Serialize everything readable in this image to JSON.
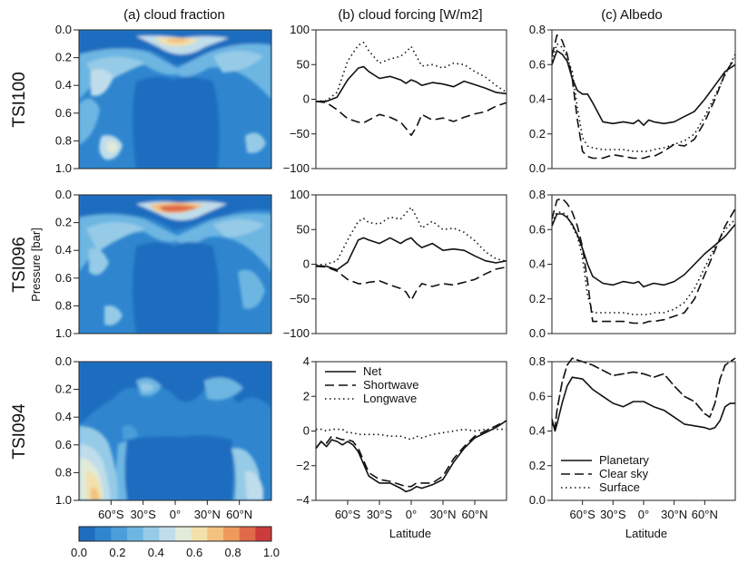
{
  "chart_data": {
    "type": "multi-panel",
    "column_titles": [
      "(a) cloud fraction",
      "(b) cloud forcing [W/m2]",
      "(c) Albedo"
    ],
    "row_labels": [
      "TSI100",
      "TSI096",
      "TSI094"
    ],
    "latitude_ticks": [
      "60°S",
      "30°S",
      "0°",
      "30°N",
      "60°N"
    ],
    "latitude_tick_values": [
      -60,
      -30,
      0,
      30,
      60
    ],
    "x_range": [
      -90,
      90
    ],
    "xlabel": "Latitude",
    "cloud_fraction": {
      "ylabel": "Pressure [bar]",
      "y_range": [
        0.0,
        1.0
      ],
      "y_ticks": [
        "0.0",
        "0.2",
        "0.4",
        "0.6",
        "0.8",
        "1.0"
      ],
      "colorbar_ticks": [
        "0.0",
        "0.2",
        "0.4",
        "0.6",
        "0.8",
        "1.0"
      ],
      "colorbar_colors": [
        "#1f6dbf",
        "#2f86cf",
        "#4a9ed9",
        "#6db6e2",
        "#96cbe7",
        "#bfddeb",
        "#e2ead8",
        "#f2e1ac",
        "#f4c27f",
        "#ee9a5d",
        "#e06a49",
        "#cc3b3b"
      ]
    },
    "cloud_forcing": {
      "rows": [
        {
          "y_range": [
            -100,
            100
          ],
          "y_ticks": [
            "100",
            "50",
            "0",
            "−50",
            "−100"
          ],
          "lat": [
            -90,
            -80,
            -70,
            -60,
            -50,
            -45,
            -40,
            -30,
            -20,
            -10,
            -5,
            0,
            5,
            10,
            20,
            30,
            40,
            50,
            60,
            70,
            80,
            90
          ],
          "series": [
            {
              "name": "Net",
              "values": [
                -3,
                -3,
                3,
                28,
                45,
                47,
                40,
                30,
                33,
                28,
                23,
                28,
                25,
                20,
                24,
                22,
                18,
                26,
                21,
                16,
                10,
                8
              ]
            },
            {
              "name": "Shortwave",
              "values": [
                -3,
                -5,
                -15,
                -28,
                -33,
                -34,
                -30,
                -22,
                -26,
                -33,
                -42,
                -52,
                -40,
                -22,
                -30,
                -27,
                -32,
                -26,
                -21,
                -18,
                -10,
                -5
              ]
            },
            {
              "name": "Longwave",
              "values": [
                -3,
                -2,
                10,
                55,
                78,
                82,
                70,
                52,
                58,
                62,
                68,
                76,
                62,
                48,
                50,
                45,
                52,
                50,
                40,
                32,
                20,
                10
              ]
            }
          ]
        },
        {
          "y_range": [
            -100,
            100
          ],
          "y_ticks": [
            "100",
            "50",
            "0",
            "−50",
            "−100"
          ],
          "lat": [
            -90,
            -80,
            -70,
            -60,
            -50,
            -45,
            -40,
            -30,
            -20,
            -10,
            -5,
            0,
            5,
            10,
            20,
            30,
            40,
            50,
            60,
            70,
            80,
            90
          ],
          "series": [
            {
              "name": "Net",
              "values": [
                -2,
                -3,
                -8,
                3,
                35,
                38,
                35,
                30,
                38,
                30,
                35,
                38,
                30,
                24,
                30,
                20,
                22,
                20,
                12,
                5,
                2,
                5
              ]
            },
            {
              "name": "Shortwave",
              "values": [
                -3,
                -4,
                -10,
                -22,
                -28,
                -28,
                -26,
                -24,
                -30,
                -35,
                -40,
                -52,
                -38,
                -28,
                -32,
                -28,
                -30,
                -26,
                -22,
                -14,
                -7,
                -4
              ]
            },
            {
              "name": "Longwave",
              "values": [
                -1,
                0,
                5,
                35,
                62,
                66,
                60,
                58,
                68,
                65,
                74,
                82,
                68,
                52,
                62,
                50,
                52,
                46,
                34,
                18,
                8,
                4
              ]
            }
          ]
        },
        {
          "y_range": [
            -4,
            4
          ],
          "y_ticks": [
            "4",
            "2",
            "0",
            "−2",
            "−4"
          ],
          "lat": [
            -90,
            -85,
            -80,
            -75,
            -70,
            -65,
            -60,
            -55,
            -50,
            -40,
            -30,
            -20,
            -10,
            -5,
            0,
            5,
            10,
            20,
            30,
            40,
            50,
            60,
            70,
            80,
            90
          ],
          "series": [
            {
              "name": "Net",
              "values": [
                -1.0,
                -0.6,
                -0.9,
                -0.5,
                -0.6,
                -0.8,
                -0.6,
                -0.8,
                -1.2,
                -2.6,
                -3.0,
                -3.0,
                -3.3,
                -3.5,
                -3.4,
                -3.2,
                -3.3,
                -3.1,
                -2.8,
                -1.8,
                -1.0,
                -0.4,
                -0.1,
                0.2,
                0.6
              ]
            },
            {
              "name": "Shortwave",
              "values": [
                -1.0,
                -0.6,
                -0.7,
                -0.3,
                -0.4,
                -0.5,
                -0.5,
                -0.6,
                -1.0,
                -2.4,
                -2.8,
                -2.9,
                -3.1,
                -3.2,
                -3.2,
                -3.0,
                -3.0,
                -3.0,
                -2.6,
                -1.6,
                -0.9,
                -0.3,
                0.0,
                0.3,
                0.6
              ]
            },
            {
              "name": "Longwave",
              "values": [
                0.1,
                0.1,
                0.0,
                0.1,
                0.1,
                0.1,
                -0.1,
                -0.1,
                -0.2,
                -0.2,
                -0.2,
                -0.3,
                -0.3,
                -0.4,
                -0.5,
                -0.3,
                -0.4,
                -0.2,
                -0.1,
                0.0,
                0.1,
                0.0,
                0.1,
                0.1,
                0.1
              ]
            }
          ]
        }
      ]
    },
    "albedo": {
      "rows": [
        {
          "y_range": [
            0.0,
            0.8
          ],
          "y_ticks": [
            "0.8",
            "0.6",
            "0.4",
            "0.2",
            "0.0"
          ],
          "lat": [
            -90,
            -85,
            -80,
            -75,
            -70,
            -65,
            -60,
            -55,
            -50,
            -40,
            -30,
            -20,
            -10,
            -5,
            0,
            5,
            10,
            20,
            30,
            40,
            50,
            60,
            70,
            80,
            90
          ],
          "series": [
            {
              "name": "Planetary",
              "values": [
                0.6,
                0.68,
                0.66,
                0.62,
                0.52,
                0.45,
                0.43,
                0.43,
                0.38,
                0.27,
                0.26,
                0.27,
                0.26,
                0.28,
                0.25,
                0.28,
                0.27,
                0.26,
                0.27,
                0.3,
                0.33,
                0.4,
                0.48,
                0.56,
                0.6
              ]
            },
            {
              "name": "Clear sky",
              "values": [
                0.65,
                0.77,
                0.74,
                0.66,
                0.52,
                0.28,
                0.1,
                0.07,
                0.06,
                0.06,
                0.08,
                0.07,
                0.06,
                0.06,
                0.06,
                0.07,
                0.07,
                0.1,
                0.14,
                0.13,
                0.17,
                0.27,
                0.4,
                0.55,
                0.64
              ]
            },
            {
              "name": "Surface",
              "values": [
                0.62,
                0.72,
                0.7,
                0.64,
                0.56,
                0.35,
                0.18,
                0.13,
                0.12,
                0.11,
                0.11,
                0.11,
                0.1,
                0.1,
                0.1,
                0.1,
                0.11,
                0.12,
                0.14,
                0.16,
                0.2,
                0.3,
                0.42,
                0.54,
                0.66
              ]
            }
          ]
        },
        {
          "y_range": [
            0.0,
            0.8
          ],
          "y_ticks": [
            "0.8",
            "0.6",
            "0.4",
            "0.2",
            "0.0"
          ],
          "lat": [
            -90,
            -85,
            -80,
            -75,
            -70,
            -65,
            -60,
            -55,
            -50,
            -40,
            -30,
            -20,
            -10,
            -5,
            0,
            5,
            10,
            20,
            30,
            40,
            50,
            60,
            70,
            80,
            90
          ],
          "series": [
            {
              "name": "Planetary",
              "values": [
                0.62,
                0.69,
                0.69,
                0.67,
                0.63,
                0.57,
                0.49,
                0.4,
                0.33,
                0.29,
                0.28,
                0.3,
                0.29,
                0.3,
                0.27,
                0.28,
                0.29,
                0.28,
                0.3,
                0.34,
                0.4,
                0.46,
                0.51,
                0.56,
                0.63
              ]
            },
            {
              "name": "Clear sky",
              "values": [
                0.66,
                0.77,
                0.78,
                0.75,
                0.7,
                0.62,
                0.5,
                0.3,
                0.07,
                0.07,
                0.07,
                0.07,
                0.06,
                0.06,
                0.06,
                0.07,
                0.07,
                0.08,
                0.1,
                0.12,
                0.2,
                0.34,
                0.48,
                0.62,
                0.72
              ]
            },
            {
              "name": "Surface",
              "values": [
                0.64,
                0.7,
                0.7,
                0.68,
                0.62,
                0.56,
                0.44,
                0.22,
                0.12,
                0.12,
                0.12,
                0.12,
                0.11,
                0.11,
                0.11,
                0.11,
                0.12,
                0.12,
                0.14,
                0.18,
                0.26,
                0.38,
                0.5,
                0.6,
                0.66
              ]
            }
          ]
        },
        {
          "y_range": [
            0.0,
            0.8
          ],
          "y_ticks": [
            "0.8",
            "0.6",
            "0.4",
            "0.2",
            "0.0"
          ],
          "lat": [
            -90,
            -87,
            -85,
            -80,
            -75,
            -70,
            -60,
            -50,
            -40,
            -30,
            -20,
            -10,
            0,
            10,
            20,
            30,
            40,
            50,
            60,
            65,
            70,
            75,
            80,
            85,
            90
          ],
          "series": [
            {
              "name": "Planetary",
              "values": [
                0.47,
                0.4,
                0.44,
                0.56,
                0.66,
                0.71,
                0.7,
                0.64,
                0.6,
                0.56,
                0.54,
                0.57,
                0.57,
                0.54,
                0.52,
                0.48,
                0.44,
                0.43,
                0.42,
                0.41,
                0.42,
                0.46,
                0.54,
                0.56,
                0.56
              ]
            },
            {
              "name": "Clear sky",
              "values": [
                0.44,
                0.42,
                0.52,
                0.68,
                0.78,
                0.82,
                0.8,
                0.78,
                0.75,
                0.72,
                0.73,
                0.74,
                0.73,
                0.71,
                0.73,
                0.66,
                0.6,
                0.57,
                0.5,
                0.48,
                0.56,
                0.7,
                0.78,
                0.8,
                0.82
              ]
            },
            {
              "name": "Surface",
              "values": [
                0.44,
                0.42,
                0.52,
                0.68,
                0.78,
                0.82,
                0.8,
                0.78,
                0.75,
                0.72,
                0.73,
                0.74,
                0.73,
                0.71,
                0.73,
                0.66,
                0.6,
                0.57,
                0.5,
                0.48,
                0.56,
                0.7,
                0.78,
                0.8,
                0.82
              ]
            }
          ]
        }
      ]
    },
    "legends": {
      "forcing": [
        "Net",
        "Shortwave",
        "Longwave"
      ],
      "albedo": [
        "Planetary",
        "Clear sky",
        "Surface"
      ]
    }
  }
}
